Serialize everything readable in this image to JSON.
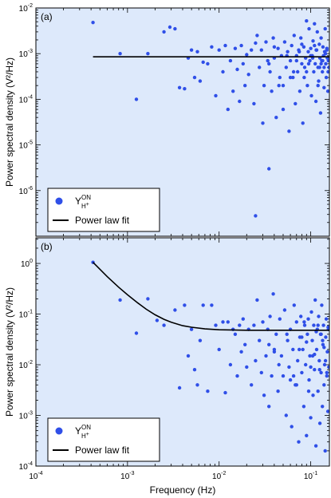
{
  "colors": {
    "panel_background": "#dde9fb",
    "point": "#2f4fe8",
    "fit_line": "#000000"
  },
  "chart_data": [
    {
      "type": "scatter",
      "panel_label": "(a)",
      "title": "",
      "xlabel": "",
      "ylabel": "Power spectral density (V²/Hz)",
      "xscale": "log",
      "yscale": "log",
      "xlim": [
        0.0001,
        0.16
      ],
      "ylim": [
        1e-07,
        0.01
      ],
      "x_ticks": [
        {
          "value": 0.0001,
          "base": "",
          "exp": ""
        },
        {
          "value": 0.001,
          "base": "",
          "exp": ""
        },
        {
          "value": 0.01,
          "base": "",
          "exp": ""
        },
        {
          "value": 0.1,
          "base": "",
          "exp": ""
        }
      ],
      "y_ticks": [
        {
          "value": 0.01,
          "base": "10",
          "exp": "-2"
        },
        {
          "value": 0.001,
          "base": "10",
          "exp": "-3"
        },
        {
          "value": 0.0001,
          "base": "10",
          "exp": "-4"
        },
        {
          "value": 1e-05,
          "base": "10",
          "exp": "-5"
        },
        {
          "value": 1e-06,
          "base": "10",
          "exp": "-6"
        }
      ],
      "legend": {
        "position": "bottom-left",
        "entries": [
          {
            "kind": "marker",
            "label": "Y",
            "sup": "ON",
            "sub": "H",
            "subsup": "+"
          },
          {
            "kind": "line",
            "label": "Power law fit"
          }
        ]
      },
      "fit": {
        "x": [
          0.00042,
          0.16
        ],
        "y": [
          0.00085,
          0.00085
        ]
      },
      "series": [
        {
          "x": [
            0.00042,
            0.00083,
            0.00125,
            0.00167,
            0.0025,
            0.0029,
            0.0033,
            0.0037,
            0.0042,
            0.0046,
            0.005,
            0.0054,
            0.0058,
            0.0062,
            0.0067,
            0.0075,
            0.0083,
            0.0092,
            0.01,
            0.011,
            0.0117,
            0.0125,
            0.0133,
            0.0142,
            0.015,
            0.0158,
            0.0167,
            0.0175,
            0.0183,
            0.0192,
            0.02,
            0.021,
            0.0225,
            0.024,
            0.025,
            0.026,
            0.0275,
            0.029,
            0.03,
            0.031,
            0.0325,
            0.034,
            0.035,
            0.036,
            0.0375,
            0.039,
            0.04,
            0.042,
            0.044,
            0.046,
            0.048,
            0.05,
            0.052,
            0.054,
            0.056,
            0.058,
            0.06,
            0.062,
            0.064,
            0.066,
            0.068,
            0.07,
            0.072,
            0.074,
            0.076,
            0.078,
            0.08,
            0.082,
            0.084,
            0.086,
            0.088,
            0.09,
            0.092,
            0.094,
            0.096,
            0.098,
            0.1,
            0.102,
            0.104,
            0.106,
            0.108,
            0.11,
            0.112,
            0.114,
            0.116,
            0.118,
            0.12,
            0.122,
            0.124,
            0.126,
            0.128,
            0.13,
            0.132,
            0.134,
            0.136,
            0.138,
            0.14,
            0.142,
            0.144,
            0.146,
            0.148,
            0.15,
            0.152,
            0.154,
            0.156,
            0.158,
            0.035,
            0.045,
            0.055,
            0.065,
            0.075,
            0.085,
            0.095,
            0.105,
            0.115,
            0.125,
            0.135,
            0.145,
            0.155,
            0.04,
            0.06,
            0.08,
            0.1,
            0.12,
            0.14,
            0.07,
            0.09,
            0.11,
            0.13,
            0.15,
            0.05,
            0.025
          ],
          "y": [
            0.0048,
            0.001,
            0.0001,
            0.001,
            0.003,
            0.0038,
            0.0035,
            0.00018,
            0.00017,
            0.0008,
            0.0012,
            0.0003,
            0.0011,
            0.00025,
            0.00065,
            0.0006,
            0.0014,
            0.00012,
            0.0012,
            0.0004,
            0.0015,
            6e-05,
            0.0007,
            0.00015,
            0.0013,
            0.00045,
            9e-05,
            0.0015,
            0.0006,
            0.0002,
            0.00095,
            0.00035,
            0.0012,
            8e-05,
            2.8e-07,
            0.0025,
            0.0005,
            0.0012,
            3e-05,
            0.0002,
            0.0018,
            0.0007,
            3e-06,
            0.0004,
            0.00015,
            0.0022,
            0.0008,
            4e-05,
            0.0013,
            0.0003,
            0.0009,
            6e-05,
            0.0018,
            0.0005,
            0.0011,
            2e-05,
            0.0007,
            0.0015,
            0.0003,
            0.0025,
            8e-05,
            0.0009,
            0.0004,
            0.0012,
            0.00015,
            0.0022,
            0.0006,
            3e-05,
            0.0014,
            0.0005,
            0.0008,
            0.0052,
            0.0002,
            0.0011,
            0.0035,
            0.0007,
            0.0013,
            0.00012,
            0.0009,
            0.0019,
            0.0004,
            0.0045,
            0.0006,
            9e-05,
            0.0012,
            0.003,
            0.0005,
            0.00025,
            0.0016,
            0.0008,
            5e-05,
            0.0022,
            0.0007,
            0.0004,
            0.0014,
            0.0009,
            0.00018,
            0.0011,
            0.0035,
            0.0006,
            0.0003,
            0.0013,
            0.0008,
            0.00015,
            0.0007,
            0.0005,
            0.0006,
            0.0002,
            0.0009,
            0.0004,
            0.0011,
            0.0003,
            0.0006,
            0.0008,
            0.0012,
            0.0005,
            0.0007,
            0.001,
            0.0004,
            0.0014,
            0.0003,
            0.0016,
            0.0009,
            0.0002,
            0.0005,
            0.0007,
            0.0004,
            0.0015,
            0.0006,
            0.0012,
            0.0002,
            0.0017
          ]
        }
      ]
    },
    {
      "type": "scatter",
      "panel_label": "(b)",
      "title": "",
      "xlabel": "Frequency (Hz)",
      "ylabel": "Power spectral density (V²/Hz)",
      "xscale": "log",
      "yscale": "log",
      "xlim": [
        0.0001,
        0.16
      ],
      "ylim": [
        0.0001,
        3.2
      ],
      "x_ticks": [
        {
          "value": 0.0001,
          "base": "10",
          "exp": "-4"
        },
        {
          "value": 0.001,
          "base": "10",
          "exp": "-3"
        },
        {
          "value": 0.01,
          "base": "10",
          "exp": "-2"
        },
        {
          "value": 0.1,
          "base": "10",
          "exp": "-1"
        }
      ],
      "y_ticks": [
        {
          "value": 1,
          "base": "10",
          "exp": "0"
        },
        {
          "value": 0.1,
          "base": "10",
          "exp": "-1"
        },
        {
          "value": 0.01,
          "base": "10",
          "exp": "-2"
        },
        {
          "value": 0.001,
          "base": "10",
          "exp": "-3"
        },
        {
          "value": 0.0001,
          "base": "10",
          "exp": "-4"
        }
      ],
      "legend": {
        "position": "bottom-left",
        "entries": [
          {
            "kind": "marker",
            "label": "Y",
            "sup": "ON",
            "sub": "H",
            "subsup": "+"
          },
          {
            "kind": "line",
            "label": "Power law fit"
          }
        ]
      },
      "fit": {
        "x": [
          0.00042,
          0.0006,
          0.0008,
          0.001,
          0.0013,
          0.0016,
          0.002,
          0.0025,
          0.003,
          0.004,
          0.005,
          0.007,
          0.01,
          0.02,
          0.05,
          0.1,
          0.16
        ],
        "y": [
          1.05,
          0.55,
          0.34,
          0.24,
          0.165,
          0.125,
          0.097,
          0.079,
          0.069,
          0.059,
          0.055,
          0.051,
          0.049,
          0.048,
          0.048,
          0.048,
          0.048
        ]
      },
      "series": [
        {
          "x": [
            0.00042,
            0.00083,
            0.00125,
            0.00167,
            0.0021,
            0.0025,
            0.0033,
            0.0037,
            0.0042,
            0.0046,
            0.005,
            0.0054,
            0.0058,
            0.0062,
            0.0067,
            0.0075,
            0.0083,
            0.0092,
            0.01,
            0.011,
            0.0117,
            0.0125,
            0.0133,
            0.0142,
            0.015,
            0.0158,
            0.0167,
            0.0175,
            0.0183,
            0.0192,
            0.02,
            0.021,
            0.0225,
            0.024,
            0.025,
            0.026,
            0.0275,
            0.029,
            0.03,
            0.031,
            0.0325,
            0.034,
            0.035,
            0.036,
            0.0375,
            0.039,
            0.04,
            0.042,
            0.044,
            0.046,
            0.048,
            0.05,
            0.052,
            0.054,
            0.056,
            0.058,
            0.06,
            0.062,
            0.064,
            0.066,
            0.068,
            0.07,
            0.072,
            0.074,
            0.076,
            0.078,
            0.08,
            0.082,
            0.084,
            0.086,
            0.088,
            0.09,
            0.092,
            0.094,
            0.096,
            0.098,
            0.1,
            0.102,
            0.104,
            0.106,
            0.108,
            0.11,
            0.112,
            0.114,
            0.116,
            0.118,
            0.12,
            0.122,
            0.124,
            0.126,
            0.128,
            0.13,
            0.132,
            0.134,
            0.136,
            0.138,
            0.14,
            0.142,
            0.144,
            0.146,
            0.148,
            0.15,
            0.152,
            0.154,
            0.156,
            0.158,
            0.035,
            0.045,
            0.055,
            0.065,
            0.075,
            0.085,
            0.095,
            0.105,
            0.115,
            0.125,
            0.135,
            0.145,
            0.155,
            0.04,
            0.06,
            0.08,
            0.1,
            0.12,
            0.14,
            0.07,
            0.09,
            0.11,
            0.13,
            0.15
          ],
          "y": [
            1.05,
            0.19,
            0.042,
            0.2,
            0.075,
            0.06,
            0.12,
            0.0035,
            0.15,
            0.015,
            0.05,
            0.008,
            0.004,
            0.03,
            0.15,
            0.003,
            0.15,
            0.06,
            0.02,
            0.07,
            0.0028,
            0.07,
            0.01,
            0.05,
            0.04,
            0.006,
            0.06,
            0.018,
            0.08,
            0.025,
            0.009,
            0.05,
            0.004,
            0.06,
            0.012,
            0.19,
            0.03,
            0.007,
            0.07,
            0.0025,
            0.015,
            0.05,
            0.0015,
            0.09,
            0.006,
            0.25,
            0.02,
            0.04,
            0.003,
            0.08,
            0.015,
            0.006,
            0.12,
            0.001,
            0.03,
            0.009,
            0.05,
            0.0006,
            0.02,
            0.15,
            0.004,
            0.07,
            0.012,
            0.0003,
            0.035,
            0.09,
            0.007,
            0.02,
            0.0015,
            0.06,
            0.01,
            0.0004,
            0.04,
            0.08,
            0.005,
            0.015,
            0.0009,
            0.11,
            0.03,
            0.0025,
            0.06,
            0.008,
            0.19,
            0.00025,
            0.02,
            0.05,
            0.003,
            0.09,
            0.012,
            0.0007,
            0.04,
            0.007,
            0.15,
            0.0015,
            0.025,
            0.06,
            0.004,
            0.01,
            0.0002,
            0.035,
            0.08,
            0.006,
            0.018,
            0.0012,
            0.05,
            0.009,
            0.025,
            0.01,
            0.04,
            0.006,
            0.02,
            0.07,
            0.003,
            0.015,
            0.045,
            0.008,
            0.03,
            0.012,
            0.055,
            0.018,
            0.005,
            0.035,
            0.009,
            0.06,
            0.022,
            0.004,
            0.028,
            0.016,
            0.04,
            0.007
          ]
        }
      ]
    }
  ]
}
